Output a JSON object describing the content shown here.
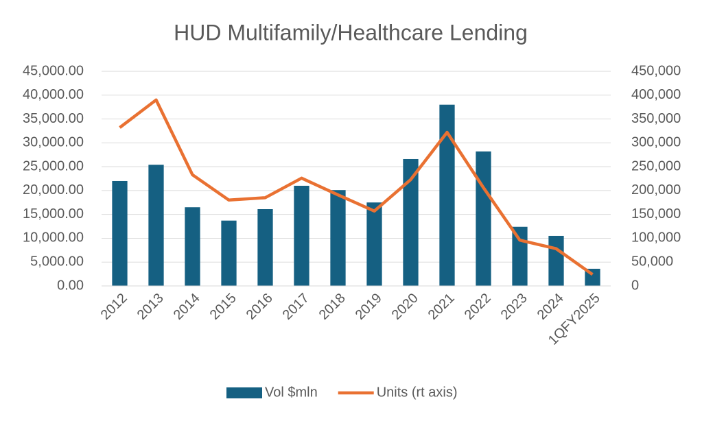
{
  "chart_data": {
    "type": "bar",
    "title": "HUD Multifamily/Healthcare Lending",
    "categories": [
      "2012",
      "2013",
      "2014",
      "2015",
      "2016",
      "2017",
      "2018",
      "2019",
      "2020",
      "2021",
      "2022",
      "2023",
      "2024",
      "1QFY2025"
    ],
    "series": [
      {
        "name": "Vol $mln",
        "type": "bar",
        "color": "#156082",
        "values": [
          22000,
          25400,
          16500,
          13700,
          16100,
          21000,
          20100,
          17500,
          26600,
          38000,
          28200,
          12400,
          10500,
          3600
        ]
      },
      {
        "name": "Units (rt axis)",
        "type": "line",
        "axis": "y2",
        "color": "#e97132",
        "values": [
          332000,
          390000,
          233000,
          180000,
          185000,
          226000,
          191000,
          157000,
          223000,
          322000,
          206000,
          96000,
          78000,
          24000
        ]
      }
    ],
    "ylim": [
      0,
      45000
    ],
    "yticks": [
      {
        "value": 0,
        "label": "0.00"
      },
      {
        "value": 5000,
        "label": "5,000.00"
      },
      {
        "value": 10000,
        "label": "10,000.00"
      },
      {
        "value": 15000,
        "label": "15,000.00"
      },
      {
        "value": 20000,
        "label": "20,000.00"
      },
      {
        "value": 25000,
        "label": "25,000.00"
      },
      {
        "value": 30000,
        "label": "30,000.00"
      },
      {
        "value": 35000,
        "label": "35,000.00"
      },
      {
        "value": 40000,
        "label": "40,000.00"
      },
      {
        "value": 45000,
        "label": "45,000.00"
      }
    ],
    "y2lim": [
      0,
      450000
    ],
    "y2ticks": [
      0,
      {
        "value": 50000,
        "label": "50,000"
      },
      {
        "value": 100000,
        "label": "100,000"
      },
      {
        "value": 150000,
        "label": "150,000"
      },
      {
        "value": 200000,
        "label": "200,000"
      },
      {
        "value": 250000,
        "label": "250,000"
      },
      {
        "value": 300000,
        "label": "300,000"
      },
      {
        "value": 350000,
        "label": "350,000"
      },
      {
        "value": 400000,
        "label": "400,000"
      },
      {
        "value": 450000,
        "label": "450,000"
      }
    ],
    "grid": true,
    "legend": "bottom"
  }
}
